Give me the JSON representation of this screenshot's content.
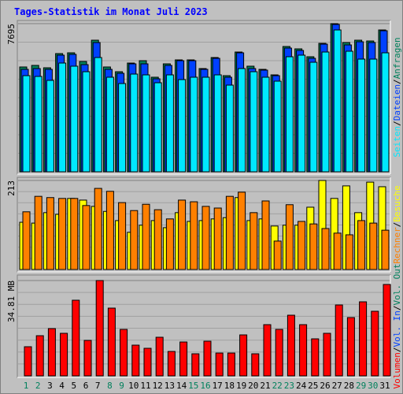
{
  "chart_data": [
    {
      "type": "bar",
      "title": "Tages-Statistik im Monat Juli 2023",
      "ylim": [
        0,
        7695
      ],
      "yticks": [
        7695
      ],
      "legend_separator": "/",
      "legend_reverse": true,
      "series": [
        {
          "name": "Anfragen",
          "color": "#00805c",
          "values": [
            5444,
            5526,
            5403,
            6140,
            6180,
            5730,
            6835,
            5444,
            5198,
            5648,
            5771,
            4912,
            5607,
            5812,
            5812,
            5362,
            5935,
            4993,
            6221,
            5485,
            5321,
            5034,
            6508,
            6385,
            5976,
            6672,
            7695,
            6713,
            6835,
            6794,
            7367
          ]
        },
        {
          "name": "Dateien",
          "color": "#0040ff",
          "values": [
            5321,
            5362,
            5321,
            6058,
            6099,
            5566,
            6712,
            5321,
            5116,
            5607,
            5607,
            4830,
            5526,
            5771,
            5771,
            5321,
            5894,
            4912,
            6180,
            5362,
            5280,
            4993,
            6426,
            6303,
            5894,
            6631,
            7654,
            6590,
            6753,
            6713,
            7326
          ]
        },
        {
          "name": "Seiten",
          "color": "#00e8ff",
          "values": [
            4993,
            4953,
            4748,
            5648,
            5485,
            5198,
            5935,
            4912,
            4584,
            5075,
            5034,
            4625,
            5034,
            4789,
            4912,
            4912,
            5034,
            4502,
            5362,
            5198,
            4912,
            4707,
            5976,
            6058,
            5689,
            6221,
            7367,
            6262,
            5853,
            5853,
            6180
          ]
        }
      ]
    },
    {
      "type": "bar",
      "ylim": [
        0,
        213
      ],
      "yticks": [
        213
      ],
      "legend_separator": "/",
      "legend_reverse": true,
      "series": [
        {
          "name": "Besuche",
          "color": "#ffff00",
          "values": [
            113,
            111,
            136,
            132,
            170,
            166,
            151,
            139,
            117,
            89,
            106,
            117,
            100,
            136,
            115,
            117,
            121,
            124,
            172,
            117,
            121,
            104,
            106,
            106,
            149,
            213,
            170,
            200,
            136,
            209,
            198
          ]
        },
        {
          "name": "Rechner",
          "color": "#ff8000",
          "values": [
            138,
            175,
            172,
            170,
            170,
            153,
            194,
            187,
            160,
            141,
            156,
            143,
            121,
            166,
            162,
            151,
            147,
            175,
            185,
            136,
            164,
            68,
            155,
            115,
            109,
            98,
            87,
            83,
            117,
            111,
            94
          ]
        }
      ]
    },
    {
      "type": "bar",
      "ylim": [
        0,
        34.81
      ],
      "yticks": [
        {
          "value": 34.81,
          "label": "34.81 MB"
        }
      ],
      "legend_separator": "/",
      "legend_reverse": false,
      "categories": [
        "1",
        "2",
        "3",
        "4",
        "5",
        "6",
        "7",
        "8",
        "9",
        "10",
        "11",
        "12",
        "13",
        "14",
        "15",
        "16",
        "17",
        "18",
        "19",
        "20",
        "21",
        "22",
        "23",
        "24",
        "25",
        "26",
        "27",
        "28",
        "29",
        "30",
        "31"
      ],
      "category_colors": [
        "#00805c",
        "#00805c",
        "#000000",
        "#000000",
        "#000000",
        "#000000",
        "#000000",
        "#00805c",
        "#00805c",
        "#000000",
        "#000000",
        "#000000",
        "#000000",
        "#000000",
        "#00805c",
        "#00805c",
        "#000000",
        "#000000",
        "#000000",
        "#000000",
        "#000000",
        "#00805c",
        "#00805c",
        "#000000",
        "#000000",
        "#000000",
        "#000000",
        "#000000",
        "#00805c",
        "#00805c",
        "#000000"
      ],
      "series": [
        {
          "name": "Volumen",
          "color": "#ff0000",
          "values": [
            10.64,
            14.67,
            17.26,
            15.54,
            27.62,
            12.95,
            34.81,
            24.74,
            16.97,
            11.22,
            10.07,
            14.1,
            8.92,
            12.37,
            8.06,
            12.66,
            8.34,
            8.34,
            14.96,
            8.06,
            18.7,
            16.97,
            22.15,
            18.7,
            13.52,
            15.54,
            25.89,
            21.29,
            27.04,
            23.59,
            33.37
          ]
        }
      ],
      "legend_extra": [
        {
          "name": "Vol. In",
          "color": "#0040ff"
        },
        {
          "name": "Vol. Out",
          "color": "#00805c"
        }
      ]
    }
  ]
}
